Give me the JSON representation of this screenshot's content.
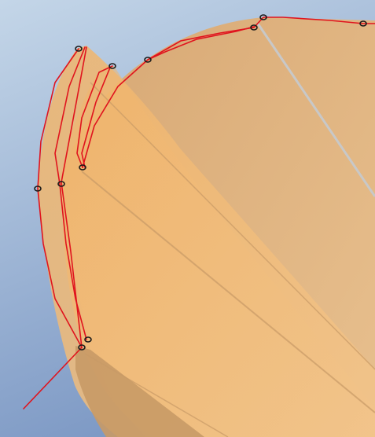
{
  "colors": {
    "background_top": "#c4d6e8",
    "background_bottom": "#7c98c4",
    "surface_light": "#f2c48a",
    "surface_mid": "#f0b46a",
    "surface_dark": "#d9a46a",
    "surface_edge": "#c89a66",
    "sketch_curve": "#e0141e",
    "vertex_marker": "#1a1a1a",
    "highlight_edge": "#c8c8c8"
  },
  "icons": {
    "vertex": "vertex-marker-icon"
  }
}
